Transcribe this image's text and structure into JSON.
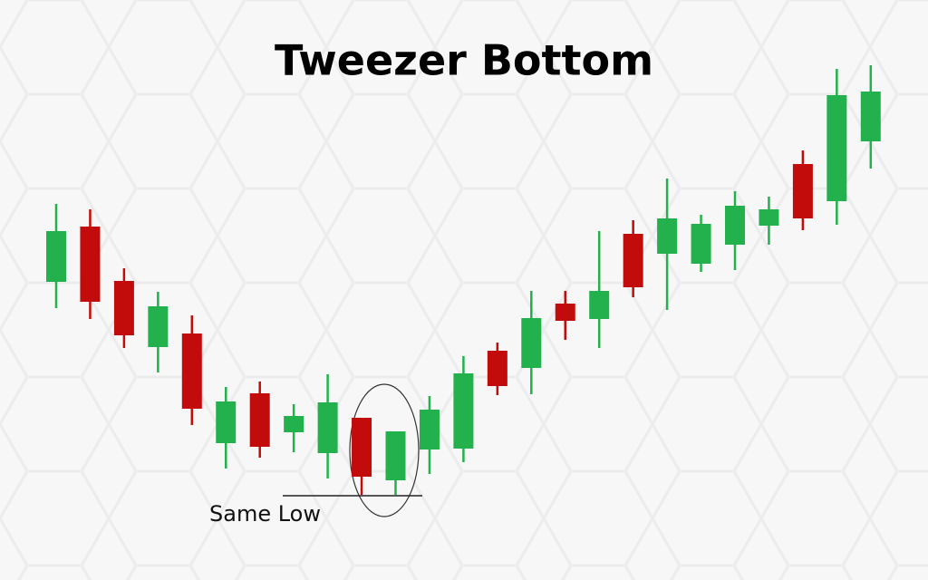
{
  "chart_data": {
    "type": "candlestick",
    "title": "Tweezer Bottom",
    "annotation": "Same Low",
    "up_color": "#22b14c",
    "down_color": "#c20b0b",
    "ylim": [
      0,
      640
    ],
    "open": [
      329,
      390,
      330,
      257,
      272,
      151,
      206,
      163,
      140,
      179,
      110,
      144,
      145,
      253,
      234,
      305,
      288,
      382,
      360,
      349,
      370,
      391,
      459,
      418,
      484
    ],
    "high": [
      415,
      409,
      344,
      318,
      292,
      213,
      219,
      194,
      227,
      179,
      164,
      203,
      247,
      262,
      319,
      319,
      385,
      397,
      443,
      403,
      429,
      423,
      474,
      564,
      568
    ],
    "low": [
      300,
      288,
      256,
      229,
      171,
      123,
      135,
      141,
      112,
      94,
      94,
      117,
      130,
      204,
      205,
      265,
      256,
      312,
      298,
      340,
      342,
      370,
      386,
      392,
      454
    ],
    "close": [
      385,
      307,
      270,
      302,
      189,
      197,
      147,
      181,
      196,
      114,
      164,
      188,
      228,
      214,
      289,
      286,
      319,
      323,
      399,
      393,
      413,
      409,
      399,
      535,
      539
    ]
  }
}
